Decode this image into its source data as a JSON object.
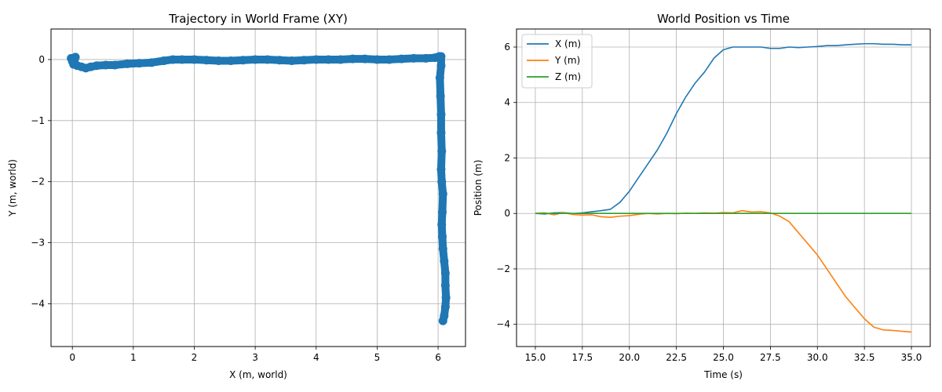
{
  "chart_data": [
    {
      "type": "scatter",
      "title": "Trajectory in World Frame (XY)",
      "xlabel": "X (m, world)",
      "ylabel": "Y (m, world)",
      "xlim": [
        -0.35,
        6.45
      ],
      "ylim": [
        -4.7,
        0.5
      ],
      "xticks": [
        0,
        1,
        2,
        3,
        4,
        5,
        6
      ],
      "xtick_labels": [
        "0",
        "1",
        "2",
        "3",
        "4",
        "5",
        "6"
      ],
      "yticks": [
        0,
        -1,
        -2,
        -3,
        -4
      ],
      "ytick_labels": [
        "0",
        "−1",
        "−2",
        "−3",
        "−4"
      ],
      "grid": true,
      "series": [
        {
          "color": "#1f77b4",
          "x": [
            -0.02,
            0.0,
            0.03,
            0.05,
            0.02,
            0.08,
            0.15,
            0.22,
            0.3,
            0.4,
            0.55,
            0.7,
            0.9,
            1.1,
            1.3,
            1.5,
            1.65,
            1.8,
            2.0,
            2.2,
            2.4,
            2.6,
            2.8,
            3.0,
            3.2,
            3.4,
            3.6,
            3.8,
            4.0,
            4.2,
            4.4,
            4.6,
            4.8,
            5.0,
            5.2,
            5.4,
            5.6,
            5.8,
            5.95,
            6.02,
            6.05,
            6.05,
            6.03,
            6.04,
            6.05,
            6.05,
            6.06,
            6.05,
            6.06,
            6.08,
            6.07,
            6.06,
            6.07,
            6.08,
            6.1,
            6.12,
            6.12,
            6.13,
            6.12,
            6.1,
            6.08
          ],
          "y": [
            0.02,
            -0.03,
            0.0,
            0.04,
            -0.08,
            -0.1,
            -0.12,
            -0.14,
            -0.12,
            -0.1,
            -0.09,
            -0.09,
            -0.07,
            -0.06,
            -0.05,
            -0.02,
            0.0,
            0.0,
            0.0,
            -0.01,
            -0.02,
            -0.02,
            -0.01,
            0.0,
            0.0,
            -0.01,
            -0.02,
            -0.01,
            0.0,
            0.0,
            0.0,
            0.01,
            0.01,
            0.0,
            0.0,
            0.01,
            0.02,
            0.02,
            0.03,
            0.05,
            0.05,
            -0.1,
            -0.3,
            -0.6,
            -0.9,
            -1.2,
            -1.5,
            -1.8,
            -2.0,
            -2.2,
            -2.5,
            -2.7,
            -2.9,
            -3.1,
            -3.3,
            -3.5,
            -3.7,
            -3.9,
            -4.05,
            -4.2,
            -4.28
          ]
        }
      ]
    },
    {
      "type": "line",
      "title": "World Position vs Time",
      "xlabel": "Time (s)",
      "ylabel": "Position (m)",
      "xlim": [
        14.0,
        36.0
      ],
      "ylim": [
        -4.8,
        6.65
      ],
      "xticks": [
        15.0,
        17.5,
        20.0,
        22.5,
        25.0,
        27.5,
        30.0,
        32.5,
        35.0
      ],
      "xtick_labels": [
        "15.0",
        "17.5",
        "20.0",
        "22.5",
        "25.0",
        "27.5",
        "30.0",
        "32.5",
        "35.0"
      ],
      "yticks": [
        6,
        4,
        2,
        0,
        -2,
        -4
      ],
      "ytick_labels": [
        "6",
        "4",
        "2",
        "0",
        "−2",
        "−4"
      ],
      "grid": true,
      "legend": "top-left",
      "series": [
        {
          "name": "X (m)",
          "color": "#1f77b4",
          "x": [
            15.0,
            15.5,
            16.0,
            16.5,
            17.0,
            17.5,
            18.0,
            18.5,
            19.0,
            19.5,
            20.0,
            20.5,
            21.0,
            21.5,
            22.0,
            22.5,
            23.0,
            23.5,
            24.0,
            24.5,
            25.0,
            25.5,
            26.0,
            26.5,
            27.0,
            27.5,
            28.0,
            28.5,
            29.0,
            29.5,
            30.0,
            30.5,
            31.0,
            31.5,
            32.0,
            32.5,
            33.0,
            33.5,
            34.0,
            34.5,
            35.0
          ],
          "y": [
            0.0,
            -0.02,
            0.02,
            0.03,
            -0.01,
            0.02,
            0.06,
            0.1,
            0.15,
            0.4,
            0.8,
            1.3,
            1.8,
            2.3,
            2.9,
            3.6,
            4.2,
            4.7,
            5.1,
            5.6,
            5.9,
            6.0,
            6.0,
            6.0,
            6.0,
            5.95,
            5.95,
            6.0,
            5.98,
            6.0,
            6.02,
            6.05,
            6.05,
            6.08,
            6.1,
            6.12,
            6.12,
            6.1,
            6.1,
            6.08,
            6.08
          ]
        },
        {
          "name": "Y (m)",
          "color": "#ff7f0e",
          "x": [
            15.0,
            15.5,
            16.0,
            16.5,
            17.0,
            17.5,
            18.0,
            18.5,
            19.0,
            19.5,
            20.0,
            20.5,
            21.0,
            21.5,
            22.0,
            22.5,
            23.0,
            23.5,
            24.0,
            24.5,
            25.0,
            25.5,
            26.0,
            26.5,
            27.0,
            27.5,
            28.0,
            28.5,
            29.0,
            29.5,
            30.0,
            30.5,
            31.0,
            31.5,
            32.0,
            32.5,
            33.0,
            33.5,
            34.0,
            34.5,
            35.0
          ],
          "y": [
            0.0,
            0.02,
            -0.05,
            0.03,
            -0.04,
            -0.06,
            -0.05,
            -0.12,
            -0.14,
            -0.1,
            -0.08,
            -0.03,
            0.0,
            -0.02,
            0.0,
            -0.01,
            0.01,
            0.0,
            0.02,
            0.01,
            0.03,
            0.02,
            0.1,
            0.05,
            0.06,
            0.02,
            -0.1,
            -0.3,
            -0.7,
            -1.1,
            -1.5,
            -2.0,
            -2.5,
            -3.0,
            -3.4,
            -3.8,
            -4.1,
            -4.2,
            -4.22,
            -4.25,
            -4.28
          ]
        },
        {
          "name": "Z (m)",
          "color": "#2ca02c",
          "x": [
            15.0,
            35.0
          ],
          "y": [
            0.0,
            0.0
          ]
        }
      ]
    }
  ]
}
